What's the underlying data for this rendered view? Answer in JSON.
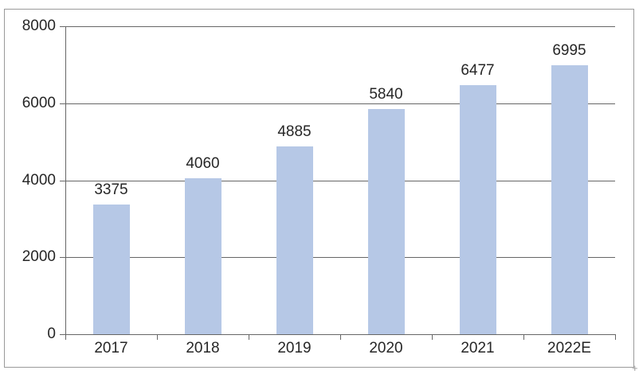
{
  "chart_data": {
    "type": "bar",
    "categories": [
      "2017",
      "2018",
      "2019",
      "2020",
      "2021",
      "2022E"
    ],
    "values": [
      3375,
      4060,
      4885,
      5840,
      6477,
      6995
    ],
    "data_labels": [
      "3375",
      "4060",
      "4885",
      "5840",
      "6477",
      "6995"
    ],
    "title": "",
    "xlabel": "",
    "ylabel": "",
    "ylim": [
      0,
      8000
    ],
    "y_ticks": [
      0,
      2000,
      4000,
      6000,
      8000
    ],
    "y_tick_labels": [
      "0",
      "2000",
      "4000",
      "6000",
      "8000"
    ],
    "grid": "horizontal-major",
    "legend": "none",
    "colors": {
      "bar_fill": "#B6C8E6",
      "gridline": "#666666",
      "axis": "#666666",
      "frame_border": "#9A9A9A",
      "text": "#262626",
      "background": "#FFFFFF"
    }
  },
  "artifacts": {
    "resize_mark": "+"
  }
}
